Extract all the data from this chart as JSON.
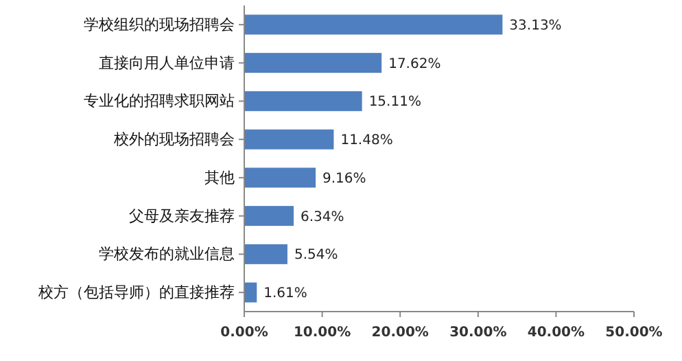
{
  "chart_data": {
    "type": "bar",
    "orientation": "horizontal",
    "categories": [
      "学校组织的现场招聘会",
      "直接向用人单位申请",
      "专业化的招聘求职网站",
      "校外的现场招聘会",
      "其他",
      "父母及亲友推荐",
      "学校发布的就业信息",
      "校方（包括导师）的直接推荐"
    ],
    "values": [
      33.13,
      17.62,
      15.11,
      11.48,
      9.16,
      6.34,
      5.54,
      1.61
    ],
    "value_labels": [
      "33.13%",
      "17.62%",
      "15.11%",
      "11.48%",
      "9.16%",
      "6.34%",
      "5.54%",
      "1.61%"
    ],
    "color": "#4f7fbf",
    "xlim": [
      0,
      50
    ],
    "xticks": [
      {
        "value": 0,
        "label": "0.00%"
      },
      {
        "value": 10,
        "label": "10.00%"
      },
      {
        "value": 20,
        "label": "20.00%"
      },
      {
        "value": 30,
        "label": "30.00%"
      },
      {
        "value": 40,
        "label": "40.00%"
      },
      {
        "value": 50,
        "label": "50.00%"
      }
    ],
    "grid": false
  }
}
